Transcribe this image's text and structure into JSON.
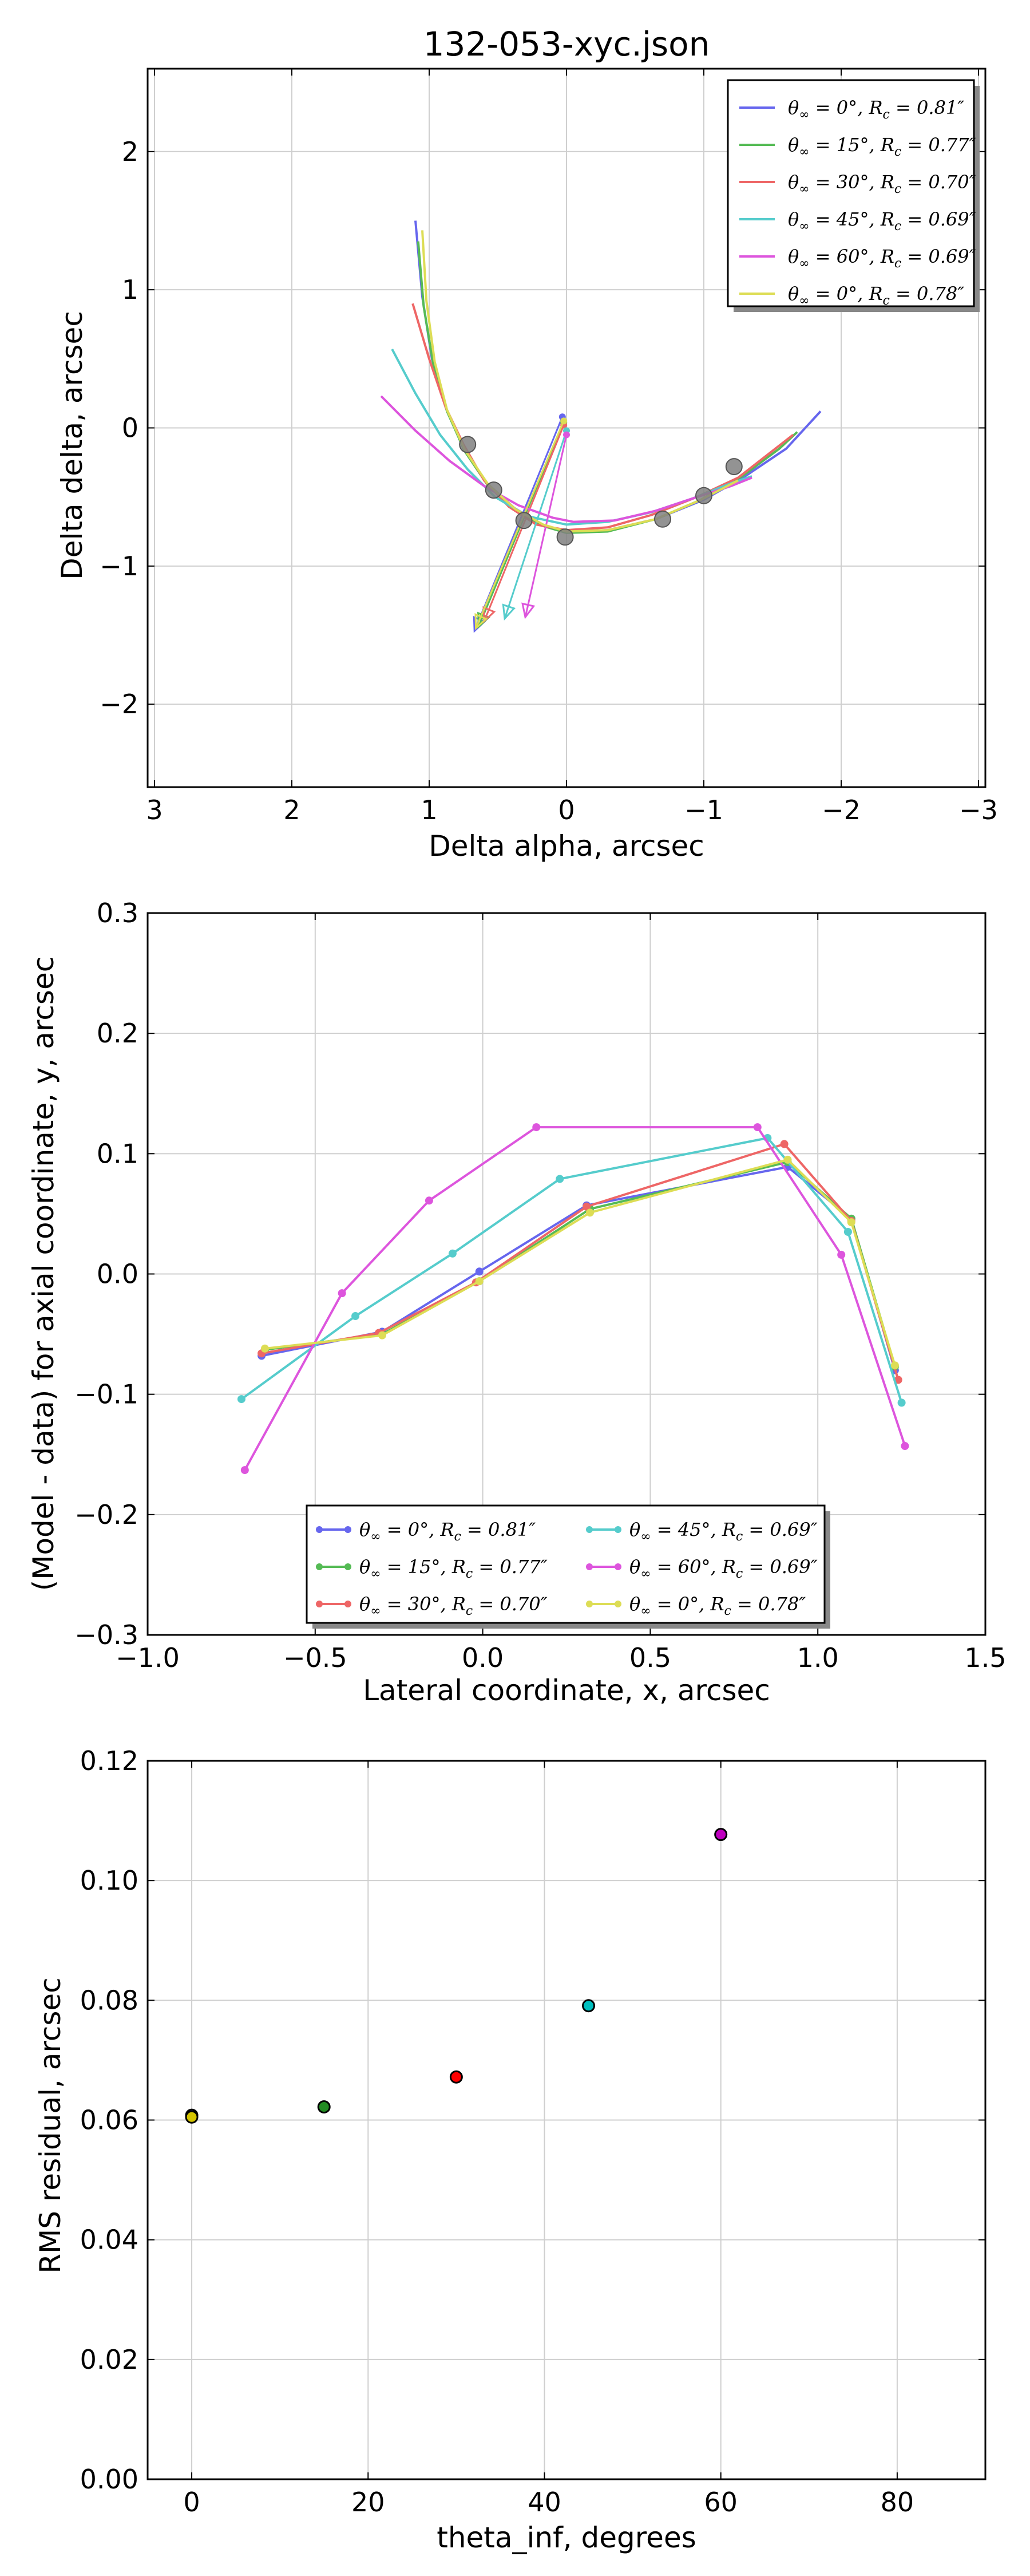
{
  "chart_data": [
    {
      "type": "line",
      "title": "132-053-xyc.json",
      "xlabel": "Delta alpha, arcsec",
      "ylabel": "Delta delta, arcsec",
      "xlim": [
        3.05,
        -3.05
      ],
      "ylim": [
        -2.6,
        2.6
      ],
      "xticks": [
        3,
        2,
        1,
        0,
        -1,
        -2,
        -3
      ],
      "yticks": [
        -2,
        -1,
        0,
        1,
        2
      ],
      "xtick_labels": [
        "3",
        "2",
        "1",
        "0",
        "−1",
        "−2",
        "−3"
      ],
      "ytick_labels": [
        "−2",
        "−1",
        "0",
        "1",
        "2"
      ],
      "grid": true,
      "legend_position": "top-right",
      "data_points": {
        "x": [
          0.72,
          0.53,
          0.31,
          0.01,
          -0.7,
          -1.0,
          -1.22
        ],
        "y": [
          -0.12,
          -0.45,
          -0.67,
          -0.79,
          -0.66,
          -0.49,
          -0.28
        ]
      },
      "series": [
        {
          "name": "θ∞ = 0°, Rc = 0.81″",
          "color": "#6666ee",
          "curve": {
            "x": [
              1.1,
              1.05,
              0.98,
              0.88,
              0.75,
              0.58,
              0.38,
              0.18,
              0.0,
              -0.3,
              -0.65,
              -1.0,
              -1.3,
              -1.6,
              -1.85
            ],
            "y": [
              1.5,
              0.95,
              0.5,
              0.15,
              -0.15,
              -0.4,
              -0.58,
              -0.7,
              -0.75,
              -0.74,
              -0.66,
              -0.52,
              -0.35,
              -0.15,
              0.12
            ]
          },
          "arrow": {
            "x": [
              0.03,
              0.67
            ],
            "y": [
              0.08,
              -1.47
            ]
          }
        },
        {
          "name": "θ∞ = 15°, Rc = 0.77″",
          "color": "#55bb55",
          "curve": {
            "x": [
              1.08,
              1.04,
              0.97,
              0.87,
              0.74,
              0.57,
              0.37,
              0.17,
              0.0,
              -0.3,
              -0.65,
              -0.98,
              -1.28,
              -1.55,
              -1.68
            ],
            "y": [
              1.35,
              0.88,
              0.46,
              0.12,
              -0.17,
              -0.42,
              -0.6,
              -0.71,
              -0.76,
              -0.75,
              -0.66,
              -0.52,
              -0.35,
              -0.15,
              -0.03
            ]
          },
          "arrow": {
            "x": [
              0.02,
              0.64
            ],
            "y": [
              0.04,
              -1.44
            ]
          }
        },
        {
          "name": "θ∞ = 30°, Rc = 0.70″",
          "color": "#ee6666",
          "curve": {
            "x": [
              1.12,
              1.0,
              0.88,
              0.75,
              0.6,
              0.42,
              0.22,
              0.0,
              -0.3,
              -0.62,
              -0.95,
              -1.25,
              -1.65
            ],
            "y": [
              0.9,
              0.5,
              0.15,
              -0.12,
              -0.38,
              -0.57,
              -0.7,
              -0.74,
              -0.72,
              -0.63,
              -0.5,
              -0.36,
              -0.05
            ]
          },
          "arrow": {
            "x": [
              0.02,
              0.6
            ],
            "y": [
              0.02,
              -1.4
            ]
          }
        },
        {
          "name": "θ∞ = 45°, Rc = 0.69″",
          "color": "#55cccc",
          "curve": {
            "x": [
              1.27,
              1.1,
              0.92,
              0.72,
              0.52,
              0.28,
              0.0,
              -0.3,
              -0.62,
              -0.92,
              -1.2,
              -1.35
            ],
            "y": [
              0.57,
              0.25,
              -0.05,
              -0.3,
              -0.5,
              -0.64,
              -0.7,
              -0.68,
              -0.61,
              -0.51,
              -0.4,
              -0.35
            ]
          },
          "arrow": {
            "x": [
              0.0,
              0.45
            ],
            "y": [
              -0.02,
              -1.38
            ]
          }
        },
        {
          "name": "θ∞ = 60°, Rc = 0.69″",
          "color": "#dd55dd",
          "curve": {
            "x": [
              1.35,
              1.1,
              0.85,
              0.6,
              0.35,
              0.1,
              -0.05,
              -0.35,
              -0.65,
              -0.95,
              -1.2,
              -1.35
            ],
            "y": [
              0.23,
              -0.02,
              -0.24,
              -0.42,
              -0.56,
              -0.65,
              -0.68,
              -0.67,
              -0.6,
              -0.5,
              -0.42,
              -0.36
            ]
          },
          "arrow": {
            "x": [
              0.0,
              0.3
            ],
            "y": [
              -0.05,
              -1.37
            ]
          }
        },
        {
          "name": "θ∞ = 0°, Rc = 0.78″",
          "color": "#dddd55",
          "curve": {
            "x": [
              1.05,
              1.02,
              0.96,
              0.87,
              0.74,
              0.57,
              0.37,
              0.17,
              0.0,
              -0.3,
              -0.65,
              -0.98,
              -1.25
            ],
            "y": [
              1.43,
              0.92,
              0.48,
              0.13,
              -0.16,
              -0.41,
              -0.59,
              -0.7,
              -0.75,
              -0.74,
              -0.66,
              -0.52,
              -0.38
            ]
          },
          "arrow": {
            "x": [
              0.02,
              0.66
            ],
            "y": [
              0.05,
              -1.45
            ]
          }
        }
      ]
    },
    {
      "type": "line",
      "xlabel": "Lateral coordinate, x, arcsec",
      "ylabel": "(Model - data) for axial coordinate, y, arcsec",
      "xlim": [
        -1.0,
        1.5
      ],
      "ylim": [
        -0.3,
        0.3
      ],
      "xticks": [
        -1.0,
        -0.5,
        0.0,
        0.5,
        1.0,
        1.5
      ],
      "yticks": [
        -0.3,
        -0.2,
        -0.1,
        0.0,
        0.1,
        0.2,
        0.3
      ],
      "xtick_labels": [
        "−1.0",
        "−0.5",
        "0.0",
        "0.5",
        "1.0",
        "1.5"
      ],
      "ytick_labels": [
        "−0.3",
        "−0.2",
        "−0.1",
        "0.0",
        "0.1",
        "0.2",
        "0.3"
      ],
      "grid": true,
      "legend_position": "lower-center",
      "series": [
        {
          "name": "θ∞ = 0°, Rc = 0.81″",
          "color": "#6666ee",
          "x": [
            -0.66,
            -0.3,
            -0.01,
            0.31,
            0.91,
            1.1,
            1.23
          ],
          "y": [
            -0.068,
            -0.048,
            0.002,
            0.057,
            0.089,
            0.046,
            -0.08
          ]
        },
        {
          "name": "θ∞ = 15°, Rc = 0.77″",
          "color": "#55bb55",
          "x": [
            -0.65,
            -0.3,
            -0.01,
            0.32,
            0.91,
            1.1,
            1.23
          ],
          "y": [
            -0.063,
            -0.05,
            -0.006,
            0.054,
            0.093,
            0.046,
            -0.077
          ]
        },
        {
          "name": "θ∞ = 30°, Rc = 0.70″",
          "color": "#ee6666",
          "x": [
            -0.66,
            -0.31,
            -0.02,
            0.31,
            0.9,
            1.1,
            1.24
          ],
          "y": [
            -0.066,
            -0.049,
            -0.007,
            0.056,
            0.108,
            0.044,
            -0.088
          ]
        },
        {
          "name": "θ∞ = 45°, Rc = 0.69″",
          "color": "#55cccc",
          "x": [
            -0.72,
            -0.38,
            -0.09,
            0.23,
            0.85,
            1.09,
            1.25
          ],
          "y": [
            -0.104,
            -0.035,
            0.017,
            0.079,
            0.113,
            0.035,
            -0.107
          ]
        },
        {
          "name": "θ∞ = 60°, Rc = 0.69″",
          "color": "#dd55dd",
          "x": [
            -0.71,
            -0.42,
            -0.16,
            0.16,
            0.82,
            1.07,
            1.26
          ],
          "y": [
            -0.163,
            -0.016,
            0.061,
            0.122,
            0.122,
            0.016,
            -0.143
          ]
        },
        {
          "name": "θ∞ = 0°, Rc = 0.78″",
          "color": "#dddd55",
          "x": [
            -0.65,
            -0.3,
            -0.01,
            0.32,
            0.91,
            1.1,
            1.23
          ],
          "y": [
            -0.062,
            -0.051,
            -0.006,
            0.051,
            0.095,
            0.043,
            -0.076
          ]
        }
      ]
    },
    {
      "type": "scatter",
      "xlabel": "theta_inf, degrees",
      "ylabel": "RMS residual, arcsec",
      "xlim": [
        -5,
        90
      ],
      "ylim": [
        0.0,
        0.12
      ],
      "xticks": [
        0,
        20,
        40,
        60,
        80
      ],
      "yticks": [
        0.0,
        0.02,
        0.04,
        0.06,
        0.08,
        0.1,
        0.12
      ],
      "xtick_labels": [
        "0",
        "20",
        "40",
        "60",
        "80"
      ],
      "ytick_labels": [
        "0.00",
        "0.02",
        "0.04",
        "0.06",
        "0.08",
        "0.10",
        "0.12"
      ],
      "grid": true,
      "points": [
        {
          "x": 0,
          "y": 0.0608,
          "color": "#4444ff"
        },
        {
          "x": 15,
          "y": 0.0622,
          "color": "#228b22"
        },
        {
          "x": 30,
          "y": 0.0672,
          "color": "#ff0000"
        },
        {
          "x": 45,
          "y": 0.0791,
          "color": "#00bfbf"
        },
        {
          "x": 60,
          "y": 0.1077,
          "color": "#bf00bf"
        },
        {
          "x": 0,
          "y": 0.0605,
          "color": "#d4c400"
        }
      ]
    }
  ]
}
